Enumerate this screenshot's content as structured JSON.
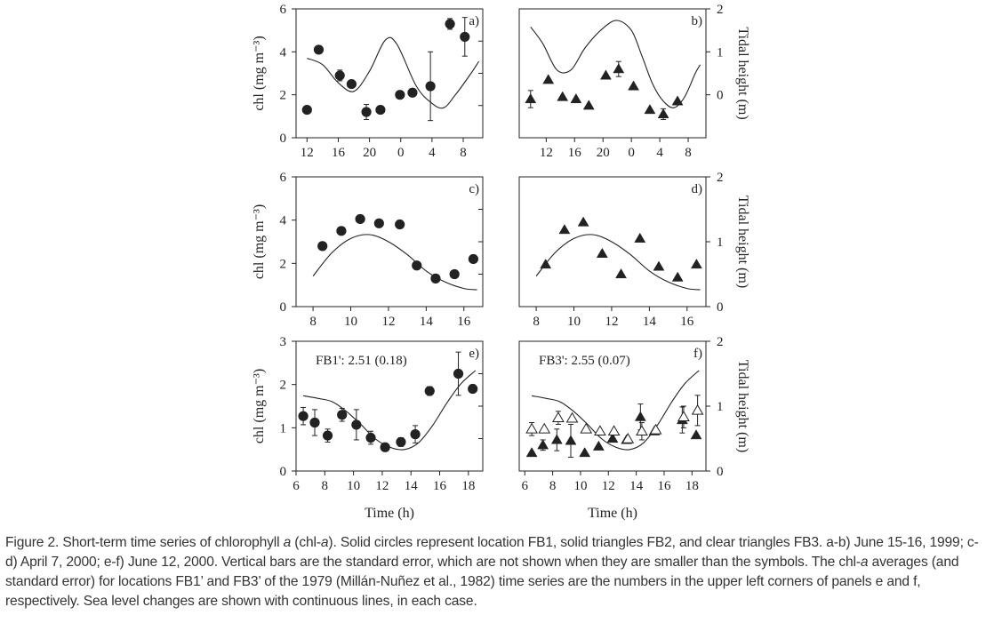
{
  "figure_label": "Figure 2.",
  "caption": {
    "p1": "Short-term time series of chlorophyll ",
    "a1": "a",
    "p2": " (chl-",
    "a2": "a",
    "p3": "). Solid circles represent location FB1, solid triangles FB2, and clear triangles FB3. a-b) June 15-16, 1999; c-d) April 7, 2000; e-f) June 12, 2000. Vertical bars are the standard error, which are not shown when they are smaller than the symbols. The chl-",
    "a3": "a",
    "p4": " averages (and standard error) for locations FB1’ and FB3’ of the 1979 (Millán-Nuñez et al., 1982) time series are the numbers in the upper left corners of panels e and f, respectively. Sea level changes are shown with continuous lines, in each case."
  },
  "colors": {
    "ink": "#222222",
    "open_fill": "#ffffff"
  },
  "chart_data": [
    {
      "id": "a",
      "label": "a)",
      "type": "scatter",
      "xlabel": "",
      "ylabel": "chl (mg m⁻³)",
      "y2label": "",
      "xlim": [
        10.6,
        34.5
      ],
      "ylim": [
        0,
        6
      ],
      "y2lim": [
        -1,
        2
      ],
      "xticks": [
        {
          "v": 12,
          "t": "12"
        },
        {
          "v": 16,
          "t": "16"
        },
        {
          "v": 20,
          "t": "20"
        },
        {
          "v": 24,
          "t": "0"
        },
        {
          "v": 28,
          "t": "4"
        },
        {
          "v": 32,
          "t": "8"
        }
      ],
      "yticks": [
        0,
        2,
        4,
        6
      ],
      "y2ticks": [],
      "series": [
        {
          "name": "FB1",
          "marker": "circle",
          "points": [
            {
              "x": 12,
              "y": 1.3
            },
            {
              "x": 13.5,
              "y": 4.1
            },
            {
              "x": 16.2,
              "y": 2.9,
              "err": 0.25
            },
            {
              "x": 17.7,
              "y": 2.5
            },
            {
              "x": 19.6,
              "y": 1.2,
              "err": 0.35
            },
            {
              "x": 21.4,
              "y": 1.3
            },
            {
              "x": 23.9,
              "y": 2.0
            },
            {
              "x": 25.5,
              "y": 2.1
            },
            {
              "x": 27.8,
              "y": 2.4,
              "err": 1.6
            },
            {
              "x": 30.3,
              "y": 5.3,
              "err": 0.25
            },
            {
              "x": 32.2,
              "y": 4.7,
              "err": 0.9
            }
          ]
        }
      ],
      "tide": [
        [
          12,
          0.85
        ],
        [
          14,
          0.7
        ],
        [
          16,
          0.28
        ],
        [
          18,
          0.08
        ],
        [
          20,
          0.55
        ],
        [
          22,
          1.27
        ],
        [
          23.5,
          1.18
        ],
        [
          26,
          0.2
        ],
        [
          28,
          -0.2
        ],
        [
          29.5,
          -0.3
        ],
        [
          31,
          0.0
        ],
        [
          33,
          0.5
        ],
        [
          34,
          0.78
        ]
      ]
    },
    {
      "id": "b",
      "label": "b)",
      "type": "scatter",
      "xlabel": "",
      "ylabel": "",
      "y2label": "Tidal height (m)",
      "xlim": [
        8.2,
        34.5
      ],
      "ylim": [
        0,
        6
      ],
      "y2lim": [
        -1,
        2
      ],
      "xticks": [
        {
          "v": 12,
          "t": "12"
        },
        {
          "v": 16,
          "t": "16"
        },
        {
          "v": 20,
          "t": "20"
        },
        {
          "v": 24,
          "t": "0"
        },
        {
          "v": 28,
          "t": "4"
        },
        {
          "v": 32,
          "t": "8"
        }
      ],
      "yticks": [],
      "y2ticks": [
        {
          "v": 0,
          "t": "0"
        },
        {
          "v": 1,
          "t": "1"
        },
        {
          "v": 2,
          "t": "2"
        }
      ],
      "series": [
        {
          "name": "FB2",
          "marker": "triangle",
          "points": [
            {
              "x": 9.8,
              "y": 1.8,
              "err": 0.4
            },
            {
              "x": 12.3,
              "y": 2.7
            },
            {
              "x": 14.3,
              "y": 1.9
            },
            {
              "x": 16.2,
              "y": 1.8
            },
            {
              "x": 18.0,
              "y": 1.5
            },
            {
              "x": 20.4,
              "y": 2.9
            },
            {
              "x": 22.2,
              "y": 3.2,
              "err": 0.35
            },
            {
              "x": 24.3,
              "y": 2.4
            },
            {
              "x": 26.6,
              "y": 1.3
            },
            {
              "x": 28.5,
              "y": 1.1,
              "err": 0.25
            },
            {
              "x": 30.5,
              "y": 1.7
            }
          ]
        }
      ],
      "tide": [
        [
          9.8,
          1.58
        ],
        [
          11.5,
          1.2
        ],
        [
          13.5,
          0.58
        ],
        [
          15.5,
          0.58
        ],
        [
          17.5,
          1.1
        ],
        [
          20,
          1.55
        ],
        [
          22,
          1.73
        ],
        [
          24,
          1.5
        ],
        [
          25.5,
          0.9
        ],
        [
          27,
          0.25
        ],
        [
          28.5,
          -0.15
        ],
        [
          30,
          -0.3
        ],
        [
          31.5,
          -0.05
        ],
        [
          33,
          0.5
        ],
        [
          33.7,
          0.7
        ]
      ]
    },
    {
      "id": "c",
      "label": "c)",
      "type": "scatter",
      "xlabel": "",
      "ylabel": "chl (mg m⁻³)",
      "y2label": "",
      "xlim": [
        7.1,
        17.0
      ],
      "ylim": [
        0,
        6
      ],
      "y2lim": [
        0,
        2
      ],
      "xticks": [
        {
          "v": 8,
          "t": "8"
        },
        {
          "v": 10,
          "t": "10"
        },
        {
          "v": 12,
          "t": "12"
        },
        {
          "v": 14,
          "t": "14"
        },
        {
          "v": 16,
          "t": "16"
        }
      ],
      "yticks": [
        0,
        2,
        4,
        6
      ],
      "y2ticks": [],
      "series": [
        {
          "name": "FB1",
          "marker": "circle",
          "points": [
            {
              "x": 8.5,
              "y": 2.8
            },
            {
              "x": 9.5,
              "y": 3.5
            },
            {
              "x": 10.5,
              "y": 4.05
            },
            {
              "x": 11.5,
              "y": 3.85
            },
            {
              "x": 12.6,
              "y": 3.8
            },
            {
              "x": 13.5,
              "y": 1.9
            },
            {
              "x": 14.5,
              "y": 1.3
            },
            {
              "x": 15.5,
              "y": 1.5
            },
            {
              "x": 16.5,
              "y": 2.2
            }
          ]
        }
      ],
      "tide": [
        [
          8,
          0.47
        ],
        [
          9,
          0.83
        ],
        [
          10,
          1.05
        ],
        [
          11,
          1.11
        ],
        [
          12,
          1.0
        ],
        [
          13,
          0.8
        ],
        [
          14,
          0.55
        ],
        [
          15,
          0.38
        ],
        [
          16,
          0.28
        ],
        [
          16.7,
          0.26
        ]
      ]
    },
    {
      "id": "d",
      "label": "d)",
      "type": "scatter",
      "xlabel": "",
      "ylabel": "",
      "y2label": "Tidal height (m)",
      "xlim": [
        7.1,
        17.0
      ],
      "ylim": [
        0,
        6
      ],
      "y2lim": [
        0,
        2
      ],
      "xticks": [
        {
          "v": 8,
          "t": "8"
        },
        {
          "v": 10,
          "t": "10"
        },
        {
          "v": 12,
          "t": "12"
        },
        {
          "v": 14,
          "t": "14"
        },
        {
          "v": 16,
          "t": "16"
        }
      ],
      "yticks": [],
      "y2ticks": [
        {
          "v": 0,
          "t": "0"
        },
        {
          "v": 1,
          "t": "1"
        },
        {
          "v": 2,
          "t": "2"
        }
      ],
      "series": [
        {
          "name": "FB2",
          "marker": "triangle",
          "points": [
            {
              "x": 8.5,
              "y": 1.95
            },
            {
              "x": 9.5,
              "y": 3.55
            },
            {
              "x": 10.5,
              "y": 3.9
            },
            {
              "x": 11.5,
              "y": 2.45
            },
            {
              "x": 12.5,
              "y": 1.5
            },
            {
              "x": 13.5,
              "y": 3.15
            },
            {
              "x": 14.5,
              "y": 1.85
            },
            {
              "x": 15.5,
              "y": 1.35
            },
            {
              "x": 16.5,
              "y": 1.95
            }
          ]
        }
      ],
      "tide": [
        [
          8,
          0.47
        ],
        [
          9,
          0.83
        ],
        [
          10,
          1.05
        ],
        [
          11,
          1.11
        ],
        [
          12,
          1.0
        ],
        [
          13,
          0.8
        ],
        [
          14,
          0.55
        ],
        [
          15,
          0.38
        ],
        [
          16,
          0.28
        ],
        [
          16.7,
          0.26
        ]
      ]
    },
    {
      "id": "e",
      "label": "e)",
      "type": "scatter",
      "xlabel": "Time (h)",
      "ylabel": "chl (mg m⁻³)",
      "y2label": "",
      "annotation": "FB1': 2.51 (0.18)",
      "xlim": [
        6,
        19
      ],
      "ylim": [
        0,
        3
      ],
      "y2lim": [
        0,
        2
      ],
      "xticks": [
        {
          "v": 6,
          "t": "6"
        },
        {
          "v": 8,
          "t": "8"
        },
        {
          "v": 10,
          "t": "10"
        },
        {
          "v": 12,
          "t": "12"
        },
        {
          "v": 14,
          "t": "14"
        },
        {
          "v": 16,
          "t": "16"
        },
        {
          "v": 18,
          "t": "18"
        }
      ],
      "yticks": [
        0,
        1,
        2,
        3
      ],
      "y2ticks": [],
      "series": [
        {
          "name": "FB1",
          "marker": "circle",
          "points": [
            {
              "x": 6.5,
              "y": 1.27,
              "err": 0.2
            },
            {
              "x": 7.3,
              "y": 1.12,
              "err": 0.3
            },
            {
              "x": 8.2,
              "y": 0.82,
              "err": 0.15
            },
            {
              "x": 9.2,
              "y": 1.3,
              "err": 0.15
            },
            {
              "x": 10.2,
              "y": 1.07,
              "err": 0.35
            },
            {
              "x": 11.2,
              "y": 0.77,
              "err": 0.15
            },
            {
              "x": 12.2,
              "y": 0.55
            },
            {
              "x": 13.3,
              "y": 0.67,
              "err": 0.1
            },
            {
              "x": 14.3,
              "y": 0.85,
              "err": 0.2
            },
            {
              "x": 15.3,
              "y": 1.85,
              "err": 0.1
            },
            {
              "x": 17.3,
              "y": 2.25,
              "err": 0.5
            },
            {
              "x": 18.3,
              "y": 1.9
            }
          ]
        }
      ],
      "tide": [
        [
          6.5,
          1.16
        ],
        [
          7.5,
          1.12
        ],
        [
          8.5,
          1.07
        ],
        [
          9.5,
          0.92
        ],
        [
          10.5,
          0.72
        ],
        [
          11.5,
          0.5
        ],
        [
          12.5,
          0.37
        ],
        [
          13.5,
          0.33
        ],
        [
          14.5,
          0.43
        ],
        [
          15.5,
          0.7
        ],
        [
          16.5,
          1.05
        ],
        [
          17.5,
          1.35
        ],
        [
          18.5,
          1.55
        ]
      ]
    },
    {
      "id": "f",
      "label": "f)",
      "type": "scatter",
      "xlabel": "Time (h)",
      "ylabel": "",
      "y2label": "Tidal height (m)",
      "annotation": "FB3': 2.55 (0.07)",
      "xlim": [
        5.6,
        19
      ],
      "ylim": [
        0,
        3
      ],
      "y2lim": [
        0,
        2
      ],
      "xticks": [
        {
          "v": 6,
          "t": "6"
        },
        {
          "v": 8,
          "t": "8"
        },
        {
          "v": 10,
          "t": "10"
        },
        {
          "v": 12,
          "t": "12"
        },
        {
          "v": 14,
          "t": "14"
        },
        {
          "v": 16,
          "t": "16"
        },
        {
          "v": 18,
          "t": "18"
        }
      ],
      "yticks": [],
      "y2ticks": [
        {
          "v": 0,
          "t": "0"
        },
        {
          "v": 1,
          "t": "1"
        },
        {
          "v": 2,
          "t": "2"
        }
      ],
      "series": [
        {
          "name": "FB2",
          "marker": "triangle",
          "points": [
            {
              "x": 6.5,
              "y": 0.42
            },
            {
              "x": 7.3,
              "y": 0.6,
              "err": 0.12
            },
            {
              "x": 8.3,
              "y": 0.72,
              "err": 0.25
            },
            {
              "x": 9.3,
              "y": 0.7,
              "err": 0.38
            },
            {
              "x": 10.3,
              "y": 0.42
            },
            {
              "x": 11.3,
              "y": 0.57
            },
            {
              "x": 12.3,
              "y": 0.75
            },
            {
              "x": 13.3,
              "y": 0.72
            },
            {
              "x": 14.3,
              "y": 1.25,
              "err": 0.3
            },
            {
              "x": 15.3,
              "y": 0.92
            },
            {
              "x": 17.3,
              "y": 1.18,
              "err": 0.3
            },
            {
              "x": 18.3,
              "y": 0.83
            }
          ]
        },
        {
          "name": "FB3",
          "marker": "triangle-open",
          "points": [
            {
              "x": 6.5,
              "y": 0.97,
              "err": 0.15
            },
            {
              "x": 7.4,
              "y": 0.97
            },
            {
              "x": 8.4,
              "y": 1.23,
              "err": 0.15
            },
            {
              "x": 9.4,
              "y": 1.22
            },
            {
              "x": 10.4,
              "y": 0.97
            },
            {
              "x": 11.4,
              "y": 0.92
            },
            {
              "x": 12.4,
              "y": 0.92
            },
            {
              "x": 13.4,
              "y": 0.74
            },
            {
              "x": 14.4,
              "y": 0.92,
              "err": 0.2
            },
            {
              "x": 15.4,
              "y": 0.95
            },
            {
              "x": 17.4,
              "y": 1.25,
              "err": 0.25
            },
            {
              "x": 18.4,
              "y": 1.4,
              "err": 0.35
            }
          ]
        }
      ],
      "tide": [
        [
          6.5,
          1.16
        ],
        [
          7.5,
          1.12
        ],
        [
          8.5,
          1.07
        ],
        [
          9.5,
          0.92
        ],
        [
          10.5,
          0.72
        ],
        [
          11.5,
          0.5
        ],
        [
          12.5,
          0.37
        ],
        [
          13.5,
          0.33
        ],
        [
          14.5,
          0.43
        ],
        [
          15.5,
          0.7
        ],
        [
          16.5,
          1.05
        ],
        [
          17.5,
          1.35
        ],
        [
          18.5,
          1.55
        ]
      ]
    }
  ]
}
